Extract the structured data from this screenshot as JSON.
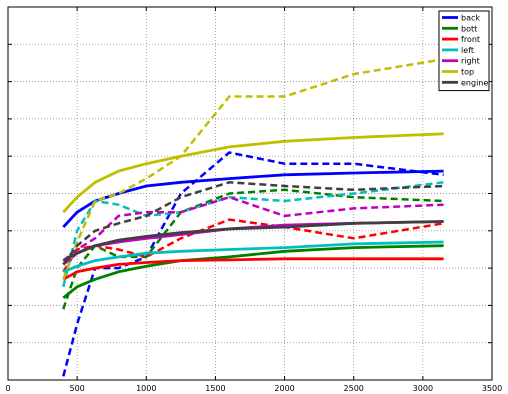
{
  "chart_data": {
    "type": "line",
    "title": "",
    "xlabel": "",
    "ylabel": "",
    "xlim": [
      0,
      3500
    ],
    "ylim": [
      0,
      10
    ],
    "grid": true,
    "legend_position": "top-right",
    "x_ticks": [
      0,
      500,
      1000,
      1500,
      2000,
      2500,
      3000,
      3500
    ],
    "x_tick_labels": [
      "0",
      "500",
      "1000",
      "1500",
      "2000",
      "2500",
      "3000",
      "3500"
    ],
    "y_ticks": [
      0,
      1,
      2,
      3,
      4,
      5,
      6,
      7,
      8,
      9,
      10
    ],
    "legend": [
      {
        "name": "back",
        "color": "#0000ff"
      },
      {
        "name": "bott",
        "color": "#008000"
      },
      {
        "name": "front",
        "color": "#ff0000"
      },
      {
        "name": "left",
        "color": "#00bfbf"
      },
      {
        "name": "right",
        "color": "#bf00bf"
      },
      {
        "name": "top",
        "color": "#bfbf00"
      },
      {
        "name": "engine",
        "color": "#404040"
      }
    ],
    "series": [
      {
        "name": "back",
        "color": "#0000ff",
        "style": "solid",
        "x": [
          400,
          500,
          630,
          800,
          1000,
          1250,
          1600,
          2000,
          2500,
          3150
        ],
        "y": [
          4.1,
          4.5,
          4.8,
          5.0,
          5.2,
          5.3,
          5.4,
          5.5,
          5.55,
          5.6
        ]
      },
      {
        "name": "back",
        "color": "#0000ff",
        "style": "dashed",
        "x": [
          400,
          500,
          630,
          800,
          1000,
          1250,
          1600,
          2000,
          2500,
          3150
        ],
        "y": [
          0.1,
          1.5,
          3.0,
          3.0,
          3.3,
          5.0,
          6.1,
          5.8,
          5.8,
          5.5
        ]
      },
      {
        "name": "bott",
        "color": "#008000",
        "style": "solid",
        "x": [
          400,
          500,
          630,
          800,
          1000,
          1250,
          1600,
          2000,
          2500,
          3150
        ],
        "y": [
          2.2,
          2.5,
          2.7,
          2.9,
          3.05,
          3.2,
          3.3,
          3.45,
          3.55,
          3.6
        ]
      },
      {
        "name": "bott",
        "color": "#008000",
        "style": "dashed",
        "x": [
          400,
          500,
          630,
          800,
          1000,
          1250,
          1600,
          2000,
          2500,
          3150
        ],
        "y": [
          1.9,
          3.0,
          3.6,
          3.3,
          3.3,
          4.5,
          5.0,
          5.1,
          4.9,
          4.8
        ]
      },
      {
        "name": "front",
        "color": "#ff0000",
        "style": "solid",
        "x": [
          400,
          500,
          630,
          800,
          1000,
          1250,
          1600,
          2000,
          2500,
          3150
        ],
        "y": [
          2.7,
          2.9,
          3.0,
          3.1,
          3.15,
          3.2,
          3.22,
          3.25,
          3.25,
          3.25
        ]
      },
      {
        "name": "front",
        "color": "#ff0000",
        "style": "dashed",
        "x": [
          400,
          500,
          630,
          800,
          1000,
          1250,
          1600,
          2000,
          2500,
          3150
        ],
        "y": [
          2.9,
          3.5,
          3.6,
          3.5,
          3.3,
          3.8,
          4.3,
          4.1,
          3.8,
          4.2
        ]
      },
      {
        "name": "left",
        "color": "#00bfbf",
        "style": "solid",
        "x": [
          400,
          500,
          630,
          800,
          1000,
          1250,
          1600,
          2000,
          2500,
          3150
        ],
        "y": [
          2.9,
          3.05,
          3.2,
          3.3,
          3.4,
          3.45,
          3.5,
          3.55,
          3.65,
          3.7
        ]
      },
      {
        "name": "left",
        "color": "#00bfbf",
        "style": "dashed",
        "x": [
          400,
          500,
          630,
          800,
          1000,
          1250,
          1600,
          2000,
          2500,
          3150
        ],
        "y": [
          2.5,
          4.0,
          4.8,
          4.7,
          4.4,
          4.5,
          4.9,
          4.8,
          5.0,
          5.3
        ]
      },
      {
        "name": "right",
        "color": "#bf00bf",
        "style": "solid",
        "x": [
          400,
          500,
          630,
          800,
          1000,
          1250,
          1600,
          2000,
          2500,
          3150
        ],
        "y": [
          3.1,
          3.4,
          3.6,
          3.7,
          3.8,
          3.9,
          4.05,
          4.15,
          4.2,
          4.25
        ]
      },
      {
        "name": "right",
        "color": "#bf00bf",
        "style": "dashed",
        "x": [
          400,
          500,
          630,
          800,
          1000,
          1250,
          1600,
          2000,
          2500,
          3150
        ],
        "y": [
          3.2,
          3.5,
          3.8,
          4.4,
          4.5,
          4.5,
          4.9,
          4.4,
          4.6,
          4.7
        ]
      },
      {
        "name": "top",
        "color": "#bfbf00",
        "style": "solid",
        "x": [
          400,
          500,
          630,
          800,
          1000,
          1250,
          1600,
          2000,
          2500,
          3150
        ],
        "y": [
          4.5,
          4.9,
          5.3,
          5.6,
          5.8,
          6.0,
          6.25,
          6.4,
          6.5,
          6.6
        ]
      },
      {
        "name": "top",
        "color": "#bfbf00",
        "style": "dashed",
        "x": [
          400,
          500,
          630,
          800,
          1000,
          1250,
          1600,
          2000,
          2500,
          3150
        ],
        "y": [
          2.7,
          3.7,
          4.8,
          5.0,
          5.4,
          6.0,
          7.6,
          7.6,
          8.2,
          8.6
        ]
      },
      {
        "name": "engine",
        "color": "#404040",
        "style": "solid",
        "x": [
          400,
          500,
          630,
          800,
          1000,
          1250,
          1600,
          2000,
          2500,
          3150
        ],
        "y": [
          3.2,
          3.4,
          3.6,
          3.75,
          3.85,
          3.95,
          4.05,
          4.1,
          4.2,
          4.25
        ]
      },
      {
        "name": "engine",
        "color": "#404040",
        "style": "dashed",
        "x": [
          400,
          500,
          630,
          800,
          1000,
          1250,
          1600,
          2000,
          2500,
          3150
        ],
        "y": [
          3.1,
          3.6,
          4.0,
          4.2,
          4.4,
          4.9,
          5.3,
          5.2,
          5.1,
          5.2
        ]
      }
    ]
  }
}
